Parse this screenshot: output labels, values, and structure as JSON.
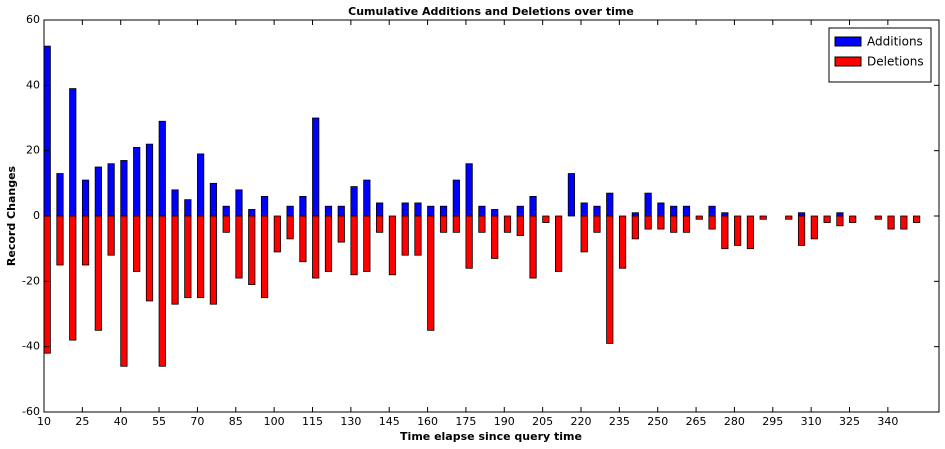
{
  "chart_data": {
    "type": "bar",
    "title": "Cumulative Additions and Deletions over time",
    "x_label": "Time elapse since query time",
    "y_label": "Record Changes",
    "x": [
      10,
      15,
      20,
      25,
      30,
      35,
      40,
      45,
      50,
      55,
      60,
      65,
      70,
      75,
      80,
      85,
      90,
      95,
      100,
      105,
      110,
      115,
      120,
      125,
      130,
      135,
      140,
      145,
      150,
      155,
      160,
      165,
      170,
      175,
      180,
      185,
      190,
      195,
      200,
      205,
      210,
      215,
      220,
      225,
      230,
      235,
      240,
      245,
      250,
      255,
      260,
      265,
      270,
      275,
      280,
      285,
      290,
      295,
      300,
      305,
      310,
      315,
      320,
      325,
      330,
      335,
      340,
      345,
      350
    ],
    "series": [
      {
        "name": "Additions",
        "color": "#0000ff",
        "values": [
          52,
          13,
          39,
          11,
          15,
          16,
          17,
          21,
          22,
          29,
          8,
          5,
          19,
          10,
          3,
          8,
          2,
          6,
          0,
          3,
          6,
          30,
          3,
          3,
          9,
          11,
          4,
          0,
          4,
          4,
          3,
          3,
          11,
          16,
          3,
          2,
          0,
          3,
          6,
          0,
          0,
          13,
          4,
          3,
          7,
          0,
          1,
          7,
          4,
          3,
          3,
          0,
          3,
          1,
          0,
          0,
          0,
          0,
          0,
          1,
          0,
          0,
          1,
          0,
          0,
          0,
          0,
          0,
          0
        ]
      },
      {
        "name": "Deletions",
        "color": "#ff0000",
        "values": [
          -42,
          -15,
          -38,
          -15,
          -35,
          -12,
          -46,
          -17,
          -26,
          -46,
          -27,
          -25,
          -25,
          -27,
          -5,
          -19,
          -21,
          -25,
          -11,
          -7,
          -14,
          -19,
          -17,
          -8,
          -18,
          -17,
          -5,
          -18,
          -12,
          -12,
          -35,
          -5,
          -5,
          -16,
          -5,
          -13,
          -5,
          -6,
          -19,
          -2,
          -17,
          0,
          -11,
          -5,
          -39,
          -16,
          -7,
          -4,
          -4,
          -5,
          -5,
          -1,
          -4,
          -10,
          -9,
          -10,
          -1,
          0,
          -1,
          -9,
          -7,
          -2,
          -3,
          -2,
          0,
          -1,
          -4,
          -4,
          -2
        ]
      }
    ],
    "bar_width": 2.5,
    "xlim": [
      10,
      360
    ],
    "xticks": [
      10,
      25,
      40,
      55,
      70,
      85,
      100,
      115,
      130,
      145,
      160,
      175,
      190,
      205,
      220,
      235,
      250,
      265,
      280,
      295,
      310,
      325,
      340
    ],
    "ylim": [
      -60,
      60
    ],
    "yticks": [
      -60,
      -40,
      -20,
      0,
      20,
      40,
      60
    ],
    "legend": "upper right",
    "edge_color": "#000000"
  }
}
